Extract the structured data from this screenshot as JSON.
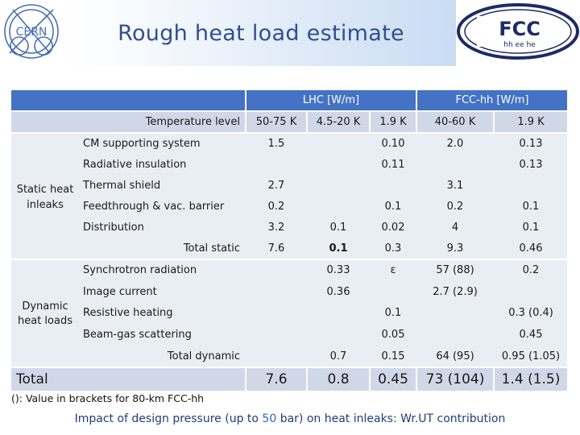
{
  "header": {
    "title": "Rough heat load estimate",
    "cern_logo_text": "CERN",
    "fcc_logo_text": "FCC",
    "fcc_logo_sub": "hh ee he"
  },
  "table": {
    "group_lhc": "LHC [W/m]",
    "group_fcc": "FCC-hh [W/m]",
    "temperature_level": "Temperature level",
    "col1": "50-75 K",
    "col2": "4.5-20 K",
    "col3": "1.9 K",
    "col4": "40-60 K",
    "col5": "1.9 K",
    "static_label": "Static heat inleaks",
    "dynamic_label": "Dynamic heat loads",
    "rows": {
      "cm": {
        "label": "CM supporting system",
        "c1": "1.5",
        "c3": "0.10",
        "c4": "2.0",
        "c5": "0.13"
      },
      "rad": {
        "label": "Radiative insulation",
        "c3": "0.11",
        "c5": "0.13"
      },
      "thermal": {
        "label": "Thermal shield",
        "c1": "2.7",
        "c4": "3.1"
      },
      "feed": {
        "label": "Feedthrough & vac. barrier",
        "c1": "0.2",
        "c3": "0.1",
        "c4": "0.2",
        "c5": "0.1"
      },
      "dist": {
        "label": "Distribution",
        "c1": "3.2",
        "c2": "0.1",
        "c3": "0.02",
        "c4": "4",
        "c5": "0.1"
      },
      "total_static": {
        "label": "Total static",
        "c1": "7.6",
        "c2": "0.1",
        "c3": "0.3",
        "c4": "9.3",
        "c5": "0.46"
      },
      "sync": {
        "label": "Synchrotron radiation",
        "c2": "0.33",
        "c3": "ε",
        "c4": "57 (88)",
        "c5": "0.2"
      },
      "image": {
        "label": "Image current",
        "c2": "0.36",
        "c4": "2.7 (2.9)"
      },
      "resist": {
        "label": "Resistive heating",
        "c3": "0.1",
        "c5": "0.3 (0.4)"
      },
      "beamgas": {
        "label": "Beam-gas scattering",
        "c3": "0.05",
        "c5": "0.45"
      },
      "total_dyn": {
        "label": "Total dynamic",
        "c2": "0.7",
        "c3": "0.15",
        "c4": "64 (95)",
        "c5": "0.95 (1.05)"
      },
      "total": {
        "label": "Total",
        "c1": "7.6",
        "c2": "0.8",
        "c3": "0.45",
        "c4": "73 (104)",
        "c5": "1.4 (1.5)"
      }
    }
  },
  "footnote": "(): Value in brackets for 80-km FCC-hh",
  "impact_prefix": "Impact of design pressure (up to ",
  "impact_number": "50",
  "impact_suffix": " bar) on heat inleaks: Wr.UT contribution"
}
